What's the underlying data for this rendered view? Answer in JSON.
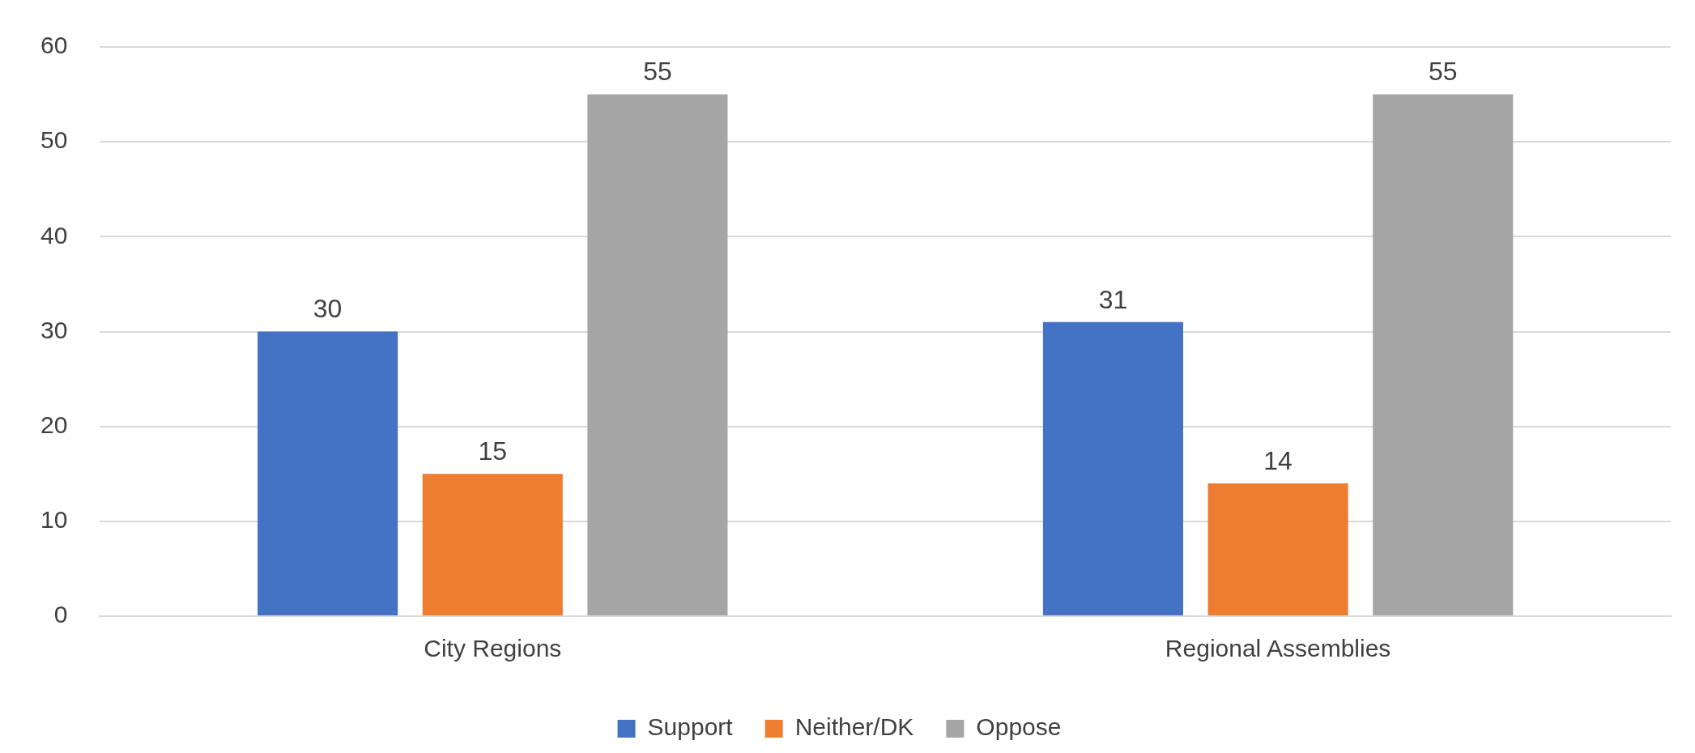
{
  "chart_data": {
    "type": "bar",
    "categories": [
      "City Regions",
      "Regional Assemblies"
    ],
    "series": [
      {
        "name": "Support",
        "color": "#4472c4",
        "values": [
          30,
          31
        ]
      },
      {
        "name": "Neither/DK",
        "color": "#ed7d31",
        "values": [
          15,
          14
        ]
      },
      {
        "name": "Oppose",
        "color": "#a5a5a5",
        "values": [
          55,
          55
        ]
      }
    ],
    "ylim": [
      0,
      60
    ],
    "yticks": [
      0,
      10,
      20,
      30,
      40,
      50,
      60
    ],
    "grid": "y",
    "legend": "bottom",
    "data_labels": true
  }
}
